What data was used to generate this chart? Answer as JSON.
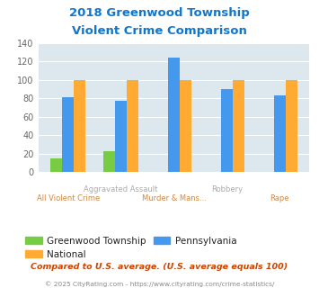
{
  "title_line1": "2018 Greenwood Township",
  "title_line2": "Violent Crime Comparison",
  "categories": [
    "All Violent Crime",
    "Aggravated Assault",
    "Murder & Mans...",
    "Robbery",
    "Rape"
  ],
  "cat_labels_row1": [
    "",
    "Aggravated Assault",
    "",
    "Robbery",
    ""
  ],
  "cat_labels_row2": [
    "All Violent Crime",
    "",
    "Murder & Mans...",
    "",
    "Rape"
  ],
  "greenwood": [
    15,
    23,
    0,
    0,
    0
  ],
  "national": [
    100,
    100,
    100,
    100,
    100
  ],
  "pennsylvania": [
    81,
    77,
    124,
    90,
    83
  ],
  "color_greenwood": "#77cc44",
  "color_national": "#ffaa33",
  "color_pennsylvania": "#4499ee",
  "color_background_plot": "#dce8ee",
  "color_background_fig": "#ffffff",
  "ylim": [
    0,
    140
  ],
  "yticks": [
    0,
    20,
    40,
    60,
    80,
    100,
    120,
    140
  ],
  "title_color": "#1177cc",
  "legend_labels": [
    "Greenwood Township",
    "National",
    "Pennsylvania"
  ],
  "footnote1": "Compared to U.S. average. (U.S. average equals 100)",
  "footnote2": "© 2025 CityRating.com - https://www.cityrating.com/crime-statistics/",
  "footnote1_color": "#cc4400",
  "footnote2_color": "#888888",
  "label_row1_color": "#aaaaaa",
  "label_row2_color": "#cc8844"
}
